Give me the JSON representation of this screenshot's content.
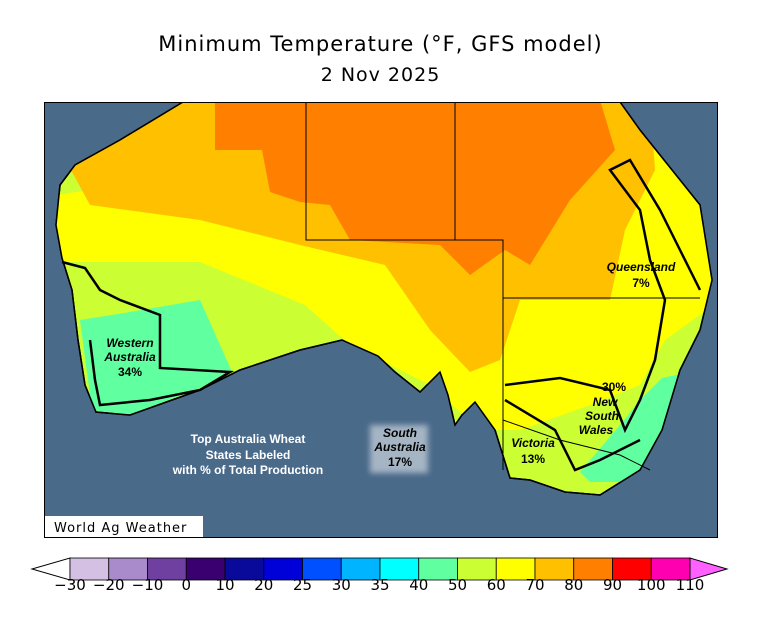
{
  "title": "Minimum Temperature (°F, GFS model)",
  "date": "2 Nov 2025",
  "credit": "World Ag Weather",
  "note": [
    "Top Australia Wheat",
    "States Labeled",
    "with % of Total Production"
  ],
  "states": [
    {
      "name": "Western Australia",
      "lines": [
        "Western",
        "Australia"
      ],
      "share": "34%"
    },
    {
      "name": "South Australia",
      "lines": [
        "South",
        "Australia"
      ],
      "share": "17%"
    },
    {
      "name": "Victoria",
      "lines": [
        "Victoria"
      ],
      "share": "13%"
    },
    {
      "name": "New South Wales",
      "lines": [
        "New",
        "South",
        "Wales"
      ],
      "share": "30%"
    },
    {
      "name": "Queensland",
      "lines": [
        "Queensland"
      ],
      "share": "7%"
    }
  ],
  "legend": {
    "labels": [
      "−30",
      "−20",
      "−10",
      "0",
      "10",
      "20",
      "25",
      "30",
      "35",
      "40",
      "50",
      "60",
      "70",
      "80",
      "90",
      "100",
      "110"
    ],
    "colors": [
      "#d3c0e3",
      "#a98acb",
      "#7040a0",
      "#3a0070",
      "#0a0a9a",
      "#0000d8",
      "#0050ff",
      "#00b4ff",
      "#00ffff",
      "#60ffa0",
      "#ccff33",
      "#ffff00",
      "#ffc000",
      "#ff8000",
      "#ff0000",
      "#ff00b0"
    ],
    "under_color": "#ffffff",
    "over_color": "#ff60ff"
  },
  "colors": {
    "ocean": "#4a6a8a",
    "land_base": "#ccff33"
  }
}
